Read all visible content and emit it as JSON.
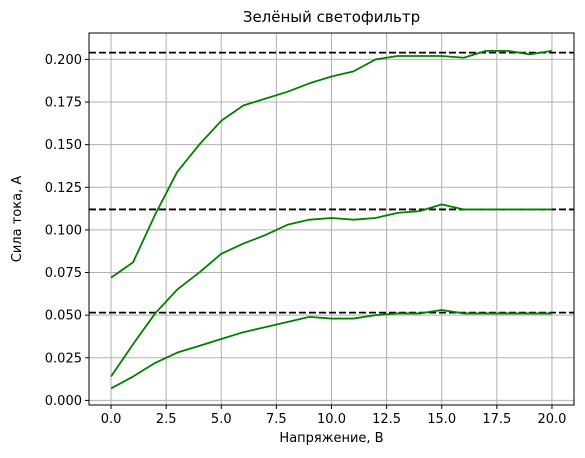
{
  "chart_data": {
    "type": "line",
    "title": "Зелёный светофильтр",
    "xlabel": "Напряжение, В",
    "ylabel": "Сила тока, А",
    "xlim": [
      -1.0,
      21.0
    ],
    "ylim": [
      -0.0027,
      0.2155
    ],
    "grid": true,
    "xticks": [
      0.0,
      2.5,
      5.0,
      7.5,
      10.0,
      12.5,
      15.0,
      17.5,
      20.0
    ],
    "xtick_labels": [
      "0.0",
      "2.5",
      "5.0",
      "7.5",
      "10.0",
      "12.5",
      "15.0",
      "17.5",
      "20.0"
    ],
    "yticks": [
      0.0,
      0.025,
      0.05,
      0.075,
      0.1,
      0.125,
      0.15,
      0.175,
      0.2
    ],
    "ytick_labels": [
      "0.000",
      "0.025",
      "0.050",
      "0.075",
      "0.100",
      "0.125",
      "0.150",
      "0.175",
      "0.200"
    ],
    "x": [
      0,
      1,
      2,
      3,
      4,
      5,
      6,
      7,
      8,
      9,
      10,
      11,
      12,
      13,
      14,
      15,
      16,
      17,
      18,
      19,
      20
    ],
    "series": [
      {
        "color": "#008000",
        "values": [
          0.072,
          0.081,
          0.109,
          0.134,
          0.15,
          0.164,
          0.173,
          0.177,
          0.181,
          0.186,
          0.19,
          0.193,
          0.2,
          0.202,
          0.202,
          0.202,
          0.201,
          0.205,
          0.205,
          0.203,
          0.205
        ]
      },
      {
        "color": "#008000",
        "values": [
          0.014,
          0.033,
          0.051,
          0.065,
          0.075,
          0.086,
          0.092,
          0.097,
          0.103,
          0.106,
          0.107,
          0.106,
          0.107,
          0.11,
          0.111,
          0.115,
          0.112,
          0.112,
          0.112,
          0.112,
          0.112
        ]
      },
      {
        "color": "#008000",
        "values": [
          0.007,
          0.014,
          0.022,
          0.028,
          0.032,
          0.036,
          0.04,
          0.043,
          0.046,
          0.049,
          0.048,
          0.048,
          0.05,
          0.051,
          0.051,
          0.053,
          0.051,
          0.051,
          0.051,
          0.051,
          0.051
        ]
      }
    ],
    "hlines": [
      {
        "y": 0.204,
        "color": "#000000",
        "style": "dashed"
      },
      {
        "y": 0.112,
        "color": "#000000",
        "style": "dashed"
      },
      {
        "y": 0.0515,
        "color": "#000000",
        "style": "dashed"
      }
    ]
  }
}
